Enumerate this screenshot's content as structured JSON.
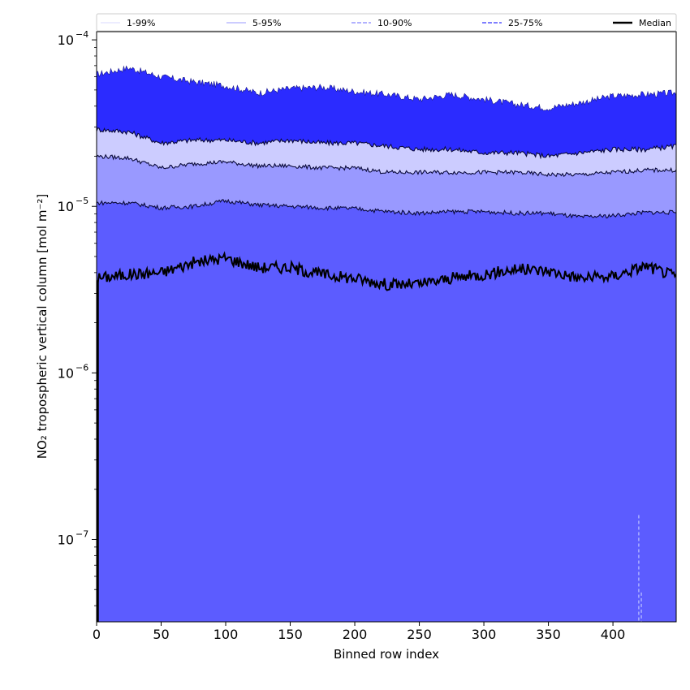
{
  "chart_data": {
    "type": "area",
    "xlabel": "Binned row index",
    "ylabel": "NO₂ tropospheric vertical column [mol m⁻²]",
    "x_ticks": [
      "0",
      "50",
      "100",
      "150",
      "200",
      "250",
      "300",
      "350",
      "400"
    ],
    "y_ticks": [
      {
        "base": "10",
        "exp": "−4",
        "value": 0.0001
      },
      {
        "base": "10",
        "exp": "−5",
        "value": 1e-05
      },
      {
        "base": "10",
        "exp": "−6",
        "value": 1e-06
      },
      {
        "base": "10",
        "exp": "−7",
        "value": 1e-07
      }
    ],
    "xlim": [
      0,
      449
    ],
    "ylim": [
      3.2e-08,
      0.000112
    ],
    "y_scale": "log",
    "grid": false,
    "legend_position": "top (above plot, single row)",
    "legend": [
      {
        "label": "1-99%",
        "style": "thin solid light",
        "color": "#d9d9ff"
      },
      {
        "label": "5-95%",
        "style": "thin solid",
        "color": "#9999ff"
      },
      {
        "label": "10-90%",
        "style": "dashed",
        "color": "#9999ff"
      },
      {
        "label": "25-75%",
        "style": "dashed",
        "color": "#5555ff"
      },
      {
        "label": "Median",
        "style": "thick solid",
        "color": "#000000"
      }
    ],
    "x": [
      0,
      25,
      50,
      75,
      100,
      125,
      150,
      175,
      200,
      225,
      250,
      275,
      300,
      325,
      350,
      375,
      400,
      425,
      449
    ],
    "series": [
      {
        "name": "1-99%",
        "fill": "#2b2bff",
        "lower": 3.2e-08,
        "upper": [
          6.2e-05,
          6.8e-05,
          6e-05,
          5.6e-05,
          5.3e-05,
          4.8e-05,
          5.1e-05,
          5.2e-05,
          4.9e-05,
          4.7e-05,
          4.4e-05,
          4.7e-05,
          4.4e-05,
          4.1e-05,
          3.9e-05,
          4.2e-05,
          4.6e-05,
          4.7e-05,
          4.8e-05
        ]
      },
      {
        "name": "5-95%",
        "fill": "#ccccff",
        "upper": [
          2.9e-05,
          2.8e-05,
          2.4e-05,
          2.5e-05,
          2.5e-05,
          2.4e-05,
          2.5e-05,
          2.4e-05,
          2.4e-05,
          2.3e-05,
          2.2e-05,
          2.2e-05,
          2.1e-05,
          2.1e-05,
          2e-05,
          2.1e-05,
          2.2e-05,
          2.2e-05,
          2.3e-05
        ]
      },
      {
        "name": "10-90%",
        "fill": "#9999ff",
        "upper": [
          2e-05,
          1.95e-05,
          1.7e-05,
          1.8e-05,
          1.85e-05,
          1.75e-05,
          1.75e-05,
          1.7e-05,
          1.7e-05,
          1.6e-05,
          1.6e-05,
          1.6e-05,
          1.6e-05,
          1.6e-05,
          1.55e-05,
          1.55e-05,
          1.6e-05,
          1.65e-05,
          1.65e-05
        ]
      },
      {
        "name": "25-75%",
        "fill": "#5c5cff",
        "upper": [
          1.05e-05,
          1.05e-05,
          9.8e-06,
          1e-05,
          1.08e-05,
          1.02e-05,
          1e-05,
          9.8e-06,
          9.7e-06,
          9.3e-06,
          9.1e-06,
          9.3e-06,
          9.3e-06,
          9.1e-06,
          9.1e-06,
          8.6e-06,
          8.8e-06,
          9.2e-06,
          9.2e-06
        ]
      },
      {
        "name": "Median",
        "color": "#000000",
        "values": [
          3.7e-06,
          3.9e-06,
          4e-06,
          4.6e-06,
          4.9e-06,
          4.3e-06,
          4.3e-06,
          3.9e-06,
          3.7e-06,
          3.4e-06,
          3.4e-06,
          3.7e-06,
          3.9e-06,
          4.2e-06,
          4.1e-06,
          3.7e-06,
          3.8e-06,
          4.4e-06,
          3.8e-06
        ]
      }
    ]
  }
}
